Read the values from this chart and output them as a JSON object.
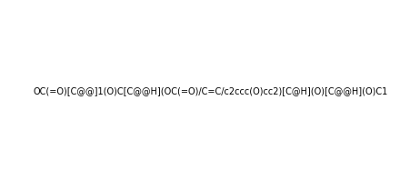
{
  "smiles": "OC(=O)[C@@]1(O)C[C@@H](OC(=O)/C=C/c2ccc(O)cc2)[C@H](O)[C@@H](O)C1",
  "title": "",
  "bg_color": "#ffffff",
  "img_size": [
    452,
    198
  ]
}
